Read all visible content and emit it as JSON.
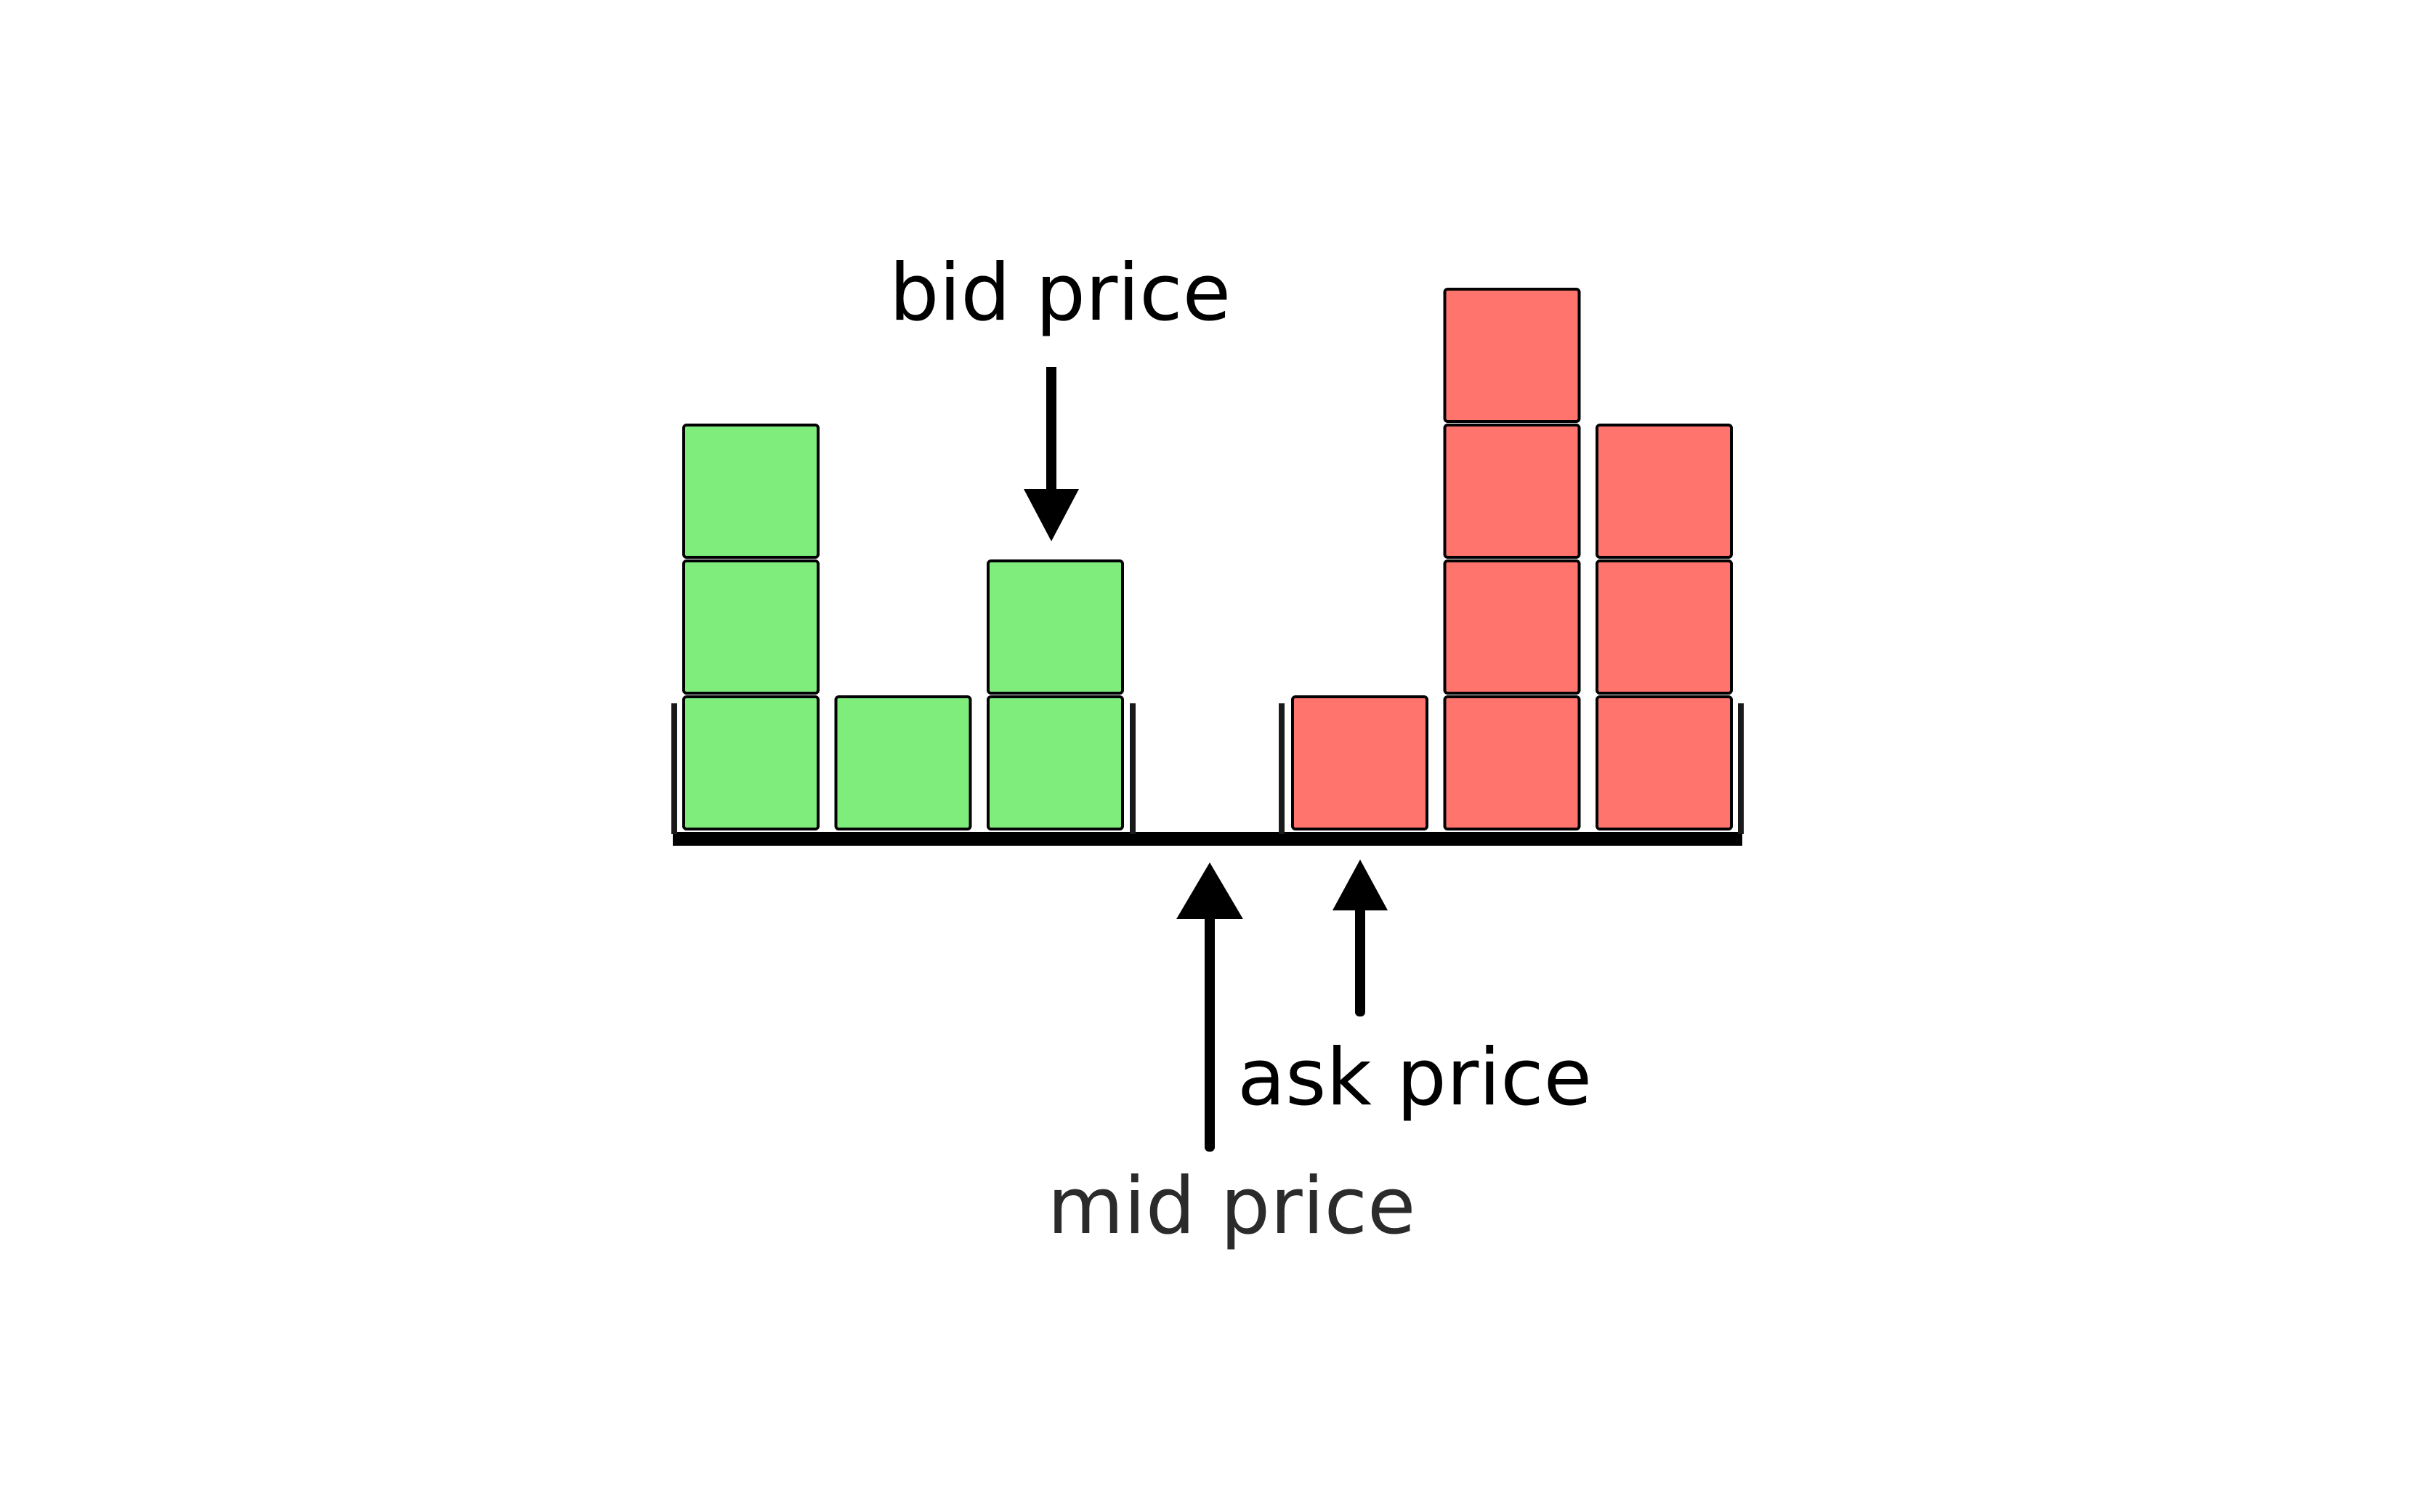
{
  "colors": {
    "background": "#ffffff",
    "bid": "#7fed7c",
    "ask": "#ff756d",
    "ink": "#000000",
    "label_muted": "#2b2b2b"
  },
  "labels": {
    "bid_price": "bid price",
    "ask_price": "ask price",
    "mid_price": "mid price"
  },
  "order_book": {
    "bid_columns": [
      3,
      1,
      2
    ],
    "empty_slots_between": 1,
    "ask_columns": [
      1,
      4,
      3
    ]
  }
}
